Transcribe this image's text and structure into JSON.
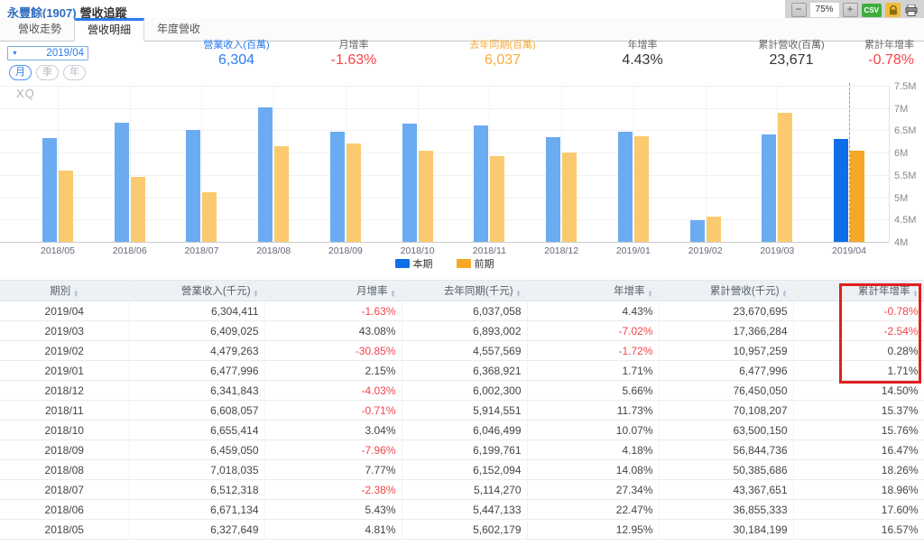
{
  "window": {
    "title_stock": "永豐餘(1907)",
    "title_page": "營收追蹤",
    "controls": {
      "zoom_out": "−",
      "zoom_value": "75%",
      "zoom_in": "+",
      "csv": "CSV"
    }
  },
  "tabs": [
    {
      "key": "revenue-trend",
      "label": "營收走勢",
      "active": false
    },
    {
      "key": "revenue-detail",
      "label": "營收明細",
      "active": true
    },
    {
      "key": "annual-revenue",
      "label": "年度營收",
      "active": false
    }
  ],
  "period_selector": {
    "dropdown_icon": "▼",
    "value": "2019/04",
    "modes": [
      {
        "key": "month",
        "label": "月",
        "active": true
      },
      {
        "key": "quarter",
        "label": "季",
        "active": false
      },
      {
        "key": "year",
        "label": "年",
        "active": false
      }
    ]
  },
  "stats": [
    {
      "label": "營業收入(百萬)",
      "value": "6,304",
      "label_color": "#2b7cf0",
      "value_color": "#2b7cf0"
    },
    {
      "label": "月增率",
      "value": "-1.63%",
      "label_color": "#666666",
      "value_color": "#f4444a"
    },
    {
      "label": "去年同期(百萬)",
      "value": "6,037",
      "label_color": "#f7ab38",
      "value_color": "#f7ab38"
    },
    {
      "label": "年增率",
      "value": "4.43%",
      "label_color": "#666666",
      "value_color": "#333333"
    },
    {
      "label": "累計營收(百萬)",
      "value": "23,671",
      "label_color": "#666666",
      "value_color": "#333333"
    },
    {
      "label": "累計年增率",
      "value": "-0.78%",
      "label_color": "#666666",
      "value_color": "#f4444a"
    }
  ],
  "chart_data": {
    "type": "bar",
    "watermark": "XQ",
    "categories": [
      "2018/05",
      "2018/06",
      "2018/07",
      "2018/08",
      "2018/09",
      "2018/10",
      "2018/11",
      "2018/12",
      "2019/01",
      "2019/02",
      "2019/03",
      "2019/04"
    ],
    "series": [
      {
        "name": "本期",
        "color": "#6babf2",
        "highlight_color": "#0e6fe8",
        "values": [
          6327649,
          6671134,
          6512318,
          7018035,
          6459050,
          6655414,
          6608057,
          6341843,
          6477996,
          4479263,
          6409025,
          6304411
        ]
      },
      {
        "name": "前期",
        "color": "#fbca70",
        "highlight_color": "#f5a726",
        "values": [
          5602179,
          5447133,
          5114270,
          6152094,
          6199761,
          6046499,
          5914551,
          6002300,
          6368921,
          4557569,
          6893002,
          6037058
        ]
      }
    ],
    "ylim": [
      4000000,
      7500000
    ],
    "y_ticks": [
      {
        "label": "7.5M",
        "value": 7500000
      },
      {
        "label": "7M",
        "value": 7000000
      },
      {
        "label": "6.5M",
        "value": 6500000
      },
      {
        "label": "6M",
        "value": 6000000
      },
      {
        "label": "5.5M",
        "value": 5500000
      },
      {
        "label": "5M",
        "value": 5000000
      },
      {
        "label": "4.5M",
        "value": 4500000
      },
      {
        "label": "4M",
        "value": 4000000
      }
    ],
    "highlight_category": "2019/04",
    "legend_position": "bottom-center",
    "grid": true
  },
  "table": {
    "columns": [
      "期別",
      "營業收入(千元)",
      "月增率",
      "去年同期(千元)",
      "年增率",
      "累計營收(千元)",
      "累計年增率"
    ],
    "rows": [
      [
        "2019/04",
        "6,304,411",
        "-1.63%",
        "6,037,058",
        "4.43%",
        "23,670,695",
        "-0.78%"
      ],
      [
        "2019/03",
        "6,409,025",
        "43.08%",
        "6,893,002",
        "-7.02%",
        "17,366,284",
        "-2.54%"
      ],
      [
        "2019/02",
        "4,479,263",
        "-30.85%",
        "4,557,569",
        "-1.72%",
        "10,957,259",
        "0.28%"
      ],
      [
        "2019/01",
        "6,477,996",
        "2.15%",
        "6,368,921",
        "1.71%",
        "6,477,996",
        "1.71%"
      ],
      [
        "2018/12",
        "6,341,843",
        "-4.03%",
        "6,002,300",
        "5.66%",
        "76,450,050",
        "14.50%"
      ],
      [
        "2018/11",
        "6,608,057",
        "-0.71%",
        "5,914,551",
        "11.73%",
        "70,108,207",
        "15.37%"
      ],
      [
        "2018/10",
        "6,655,414",
        "3.04%",
        "6,046,499",
        "10.07%",
        "63,500,150",
        "15.76%"
      ],
      [
        "2018/09",
        "6,459,050",
        "-7.96%",
        "6,199,761",
        "4.18%",
        "56,844,736",
        "16.47%"
      ],
      [
        "2018/08",
        "7,018,035",
        "7.77%",
        "6,152,094",
        "14.08%",
        "50,385,686",
        "18.26%"
      ],
      [
        "2018/07",
        "6,512,318",
        "-2.38%",
        "5,114,270",
        "27.34%",
        "43,367,651",
        "18.96%"
      ],
      [
        "2018/06",
        "6,671,134",
        "5.43%",
        "5,447,133",
        "22.47%",
        "36,855,333",
        "17.60%"
      ],
      [
        "2018/05",
        "6,327,649",
        "4.81%",
        "5,602,179",
        "12.95%",
        "30,184,199",
        "16.57%"
      ]
    ],
    "highlight_box": {
      "column": "累計年增率",
      "rows_covered": [
        "2019/04",
        "2019/03",
        "2019/02",
        "2019/01"
      ],
      "color": "#e01f1f"
    }
  },
  "colors": {
    "accent_blue": "#2b7cf0",
    "negative_red": "#f4444a",
    "orange": "#f7ab38"
  }
}
